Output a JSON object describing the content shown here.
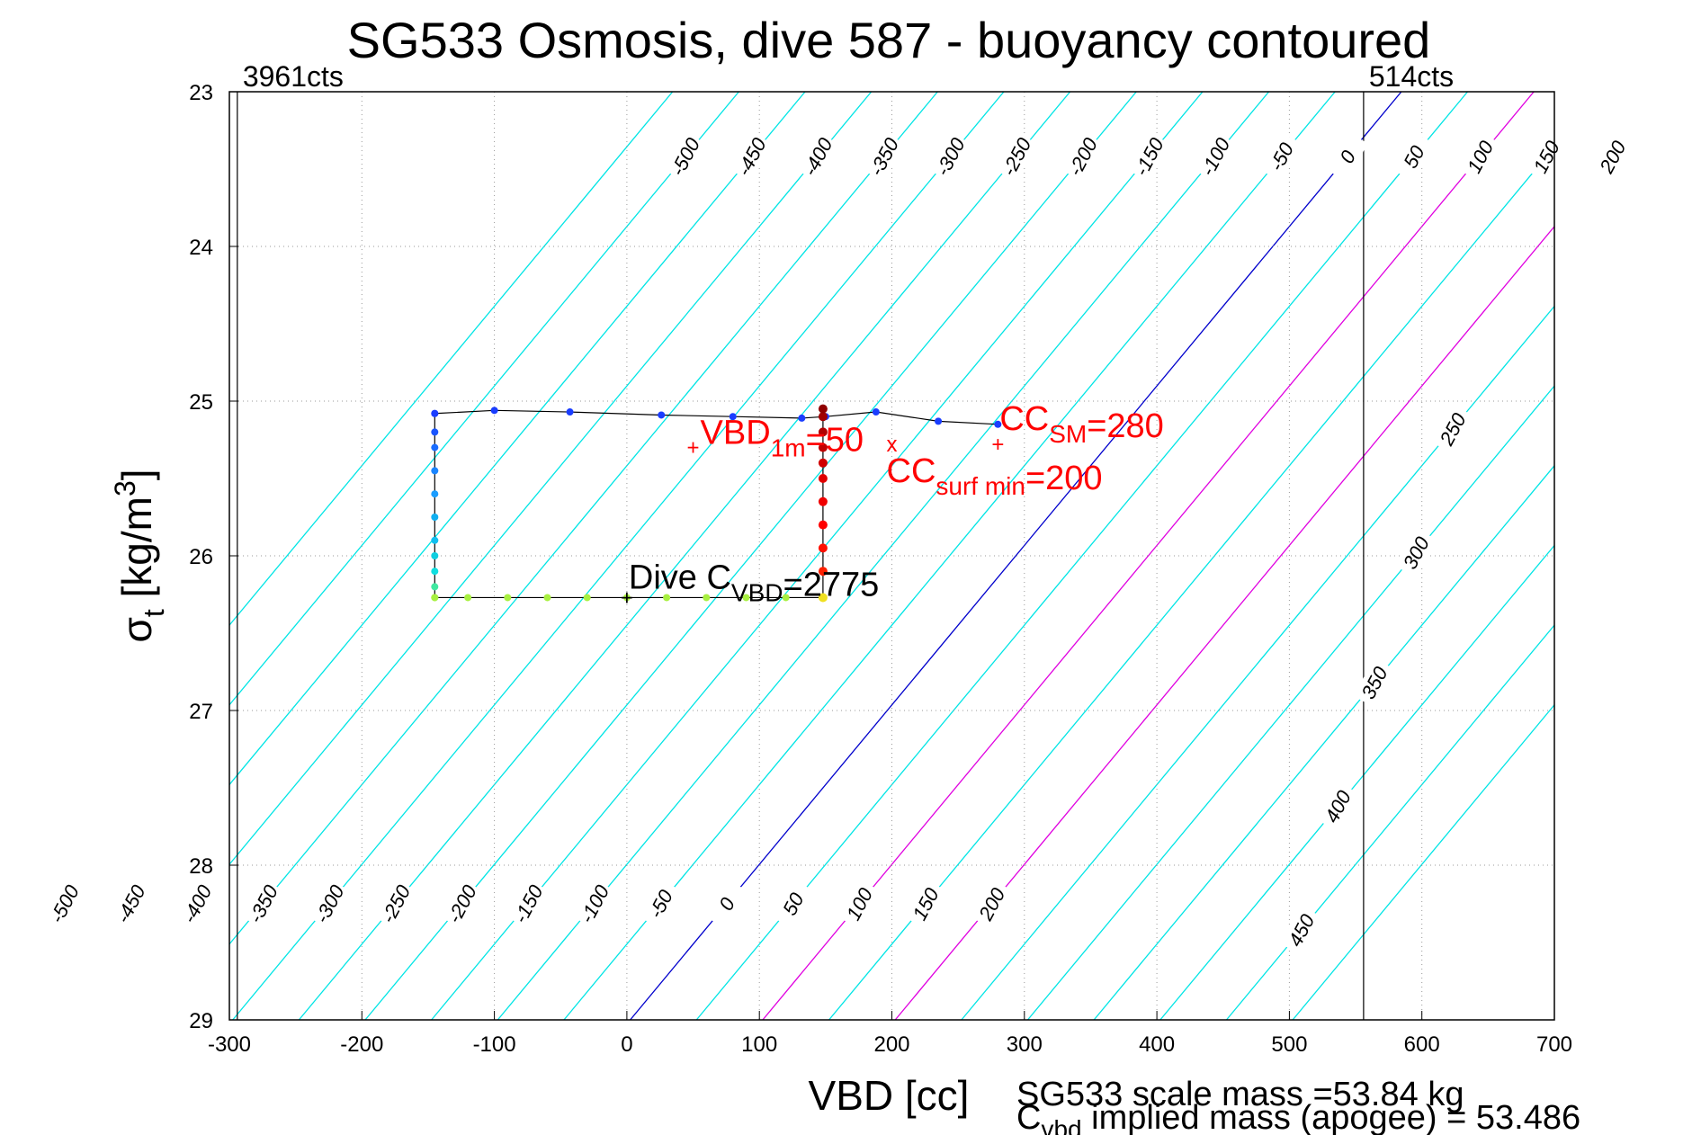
{
  "chart_data": {
    "type": "scatter",
    "title": "SG533 Osmosis, dive 587 - buoyancy contoured",
    "xlabel": "VBD [cc]",
    "ylabel_main": "σ",
    "ylabel_sub": "t",
    "ylabel_unit_pre": " [kg/m",
    "ylabel_unit_sup": "3",
    "ylabel_unit_post": "]",
    "xlim": [
      -300,
      700
    ],
    "ylim": [
      29,
      23
    ],
    "x_ticks": [
      "-300",
      "-200",
      "-100",
      "0",
      "100",
      "200",
      "300",
      "400",
      "500",
      "600",
      "700"
    ],
    "x_tick_values": [
      -300,
      -200,
      -100,
      0,
      100,
      200,
      300,
      400,
      500,
      600,
      700
    ],
    "y_ticks": [
      "23",
      "24",
      "25",
      "26",
      "27",
      "28",
      "29"
    ],
    "y_tick_values": [
      23,
      24,
      25,
      26,
      27,
      28,
      29
    ],
    "grid": "dotted",
    "vlines": [
      {
        "x": -294,
        "label": "3961cts"
      },
      {
        "x": 556,
        "label": "514cts"
      }
    ],
    "buoyancy_contours": {
      "slope_cc_per_sigma": -97,
      "ref_sigma": 26.5,
      "ref_x_at_zero": 245,
      "levels": [
        -550,
        -500,
        -450,
        -400,
        -350,
        -300,
        -250,
        -200,
        -150,
        -100,
        -50,
        0,
        50,
        100,
        150,
        200,
        250,
        300,
        350,
        400,
        450,
        500
      ],
      "top_labels": [
        "-500",
        "-450",
        "-400",
        "-350",
        "-300",
        "-250",
        "-200",
        "-150",
        "-100",
        "-50",
        "0",
        "50",
        "100",
        "150",
        "200"
      ],
      "bottom_labels": [
        "-500",
        "-450",
        "-400",
        "-350",
        "-300",
        "-250",
        "-200",
        "-150",
        "-100",
        "-50",
        "0",
        "50",
        "100",
        "150",
        "200"
      ],
      "right_labels": [
        "250",
        "300",
        "350",
        "400",
        "450"
      ],
      "colors": {
        "default": "#00e5e5",
        "zero": "#0000cc",
        "highlight": "#e000e0"
      },
      "highlight_levels": [
        100,
        200
      ]
    },
    "dive_path": {
      "descent_top": [
        [
          -145,
          25.08
        ],
        [
          -100,
          25.06
        ],
        [
          -43,
          25.07
        ],
        [
          26,
          25.09
        ],
        [
          80,
          25.1
        ],
        [
          132,
          25.11
        ],
        [
          150,
          25.1
        ],
        [
          188,
          25.07
        ],
        [
          235,
          25.13
        ],
        [
          280,
          25.15
        ]
      ],
      "descent_left": [
        [
          -145,
          25.08
        ],
        [
          -145,
          25.2
        ],
        [
          -145,
          25.3
        ],
        [
          -145,
          25.45
        ],
        [
          -145,
          25.6
        ],
        [
          -145,
          25.75
        ],
        [
          -145,
          25.9
        ],
        [
          -145,
          26.0
        ],
        [
          -145,
          26.1
        ],
        [
          -145,
          26.2
        ],
        [
          -145,
          26.27
        ]
      ],
      "bottom": [
        [
          -145,
          26.27
        ],
        [
          -120,
          26.27
        ],
        [
          -90,
          26.27
        ],
        [
          -60,
          26.27
        ],
        [
          -30,
          26.27
        ],
        [
          0,
          26.27
        ],
        [
          30,
          26.27
        ],
        [
          60,
          26.27
        ],
        [
          90,
          26.27
        ],
        [
          120,
          26.27
        ],
        [
          148,
          26.27
        ]
      ],
      "ascent": [
        [
          148,
          26.27
        ],
        [
          148,
          26.1
        ],
        [
          148,
          25.95
        ],
        [
          148,
          25.8
        ],
        [
          148,
          25.65
        ],
        [
          148,
          25.5
        ],
        [
          148,
          25.4
        ],
        [
          148,
          25.3
        ],
        [
          148,
          25.2
        ],
        [
          148,
          25.1
        ],
        [
          148,
          25.05
        ]
      ]
    },
    "annotations": [
      {
        "x": 50,
        "y": 25.3,
        "marker": "+",
        "main": "VBD",
        "sub": "1m",
        "post": "=50",
        "color": "#ff0000"
      },
      {
        "x": 280,
        "y": 25.28,
        "marker": "+",
        "main": "CC",
        "sub": "SM",
        "post": "=280",
        "color": "#ff0000"
      },
      {
        "x": 200,
        "y": 25.28,
        "marker": "x",
        "main": "CC",
        "sub": "surf min",
        "post": "=200",
        "color": "#ff0000"
      },
      {
        "x": 0,
        "y": 26.27,
        "marker": "+",
        "main": "Dive C",
        "sub": "VBD",
        "post": "=2775",
        "color": "#000000"
      }
    ],
    "footer": {
      "line1": "SG533 scale mass =53.84 kg",
      "line2_main": "C",
      "line2_sub": "vbd",
      "line2_post": " implied mass (apogee) = 53.486"
    }
  }
}
